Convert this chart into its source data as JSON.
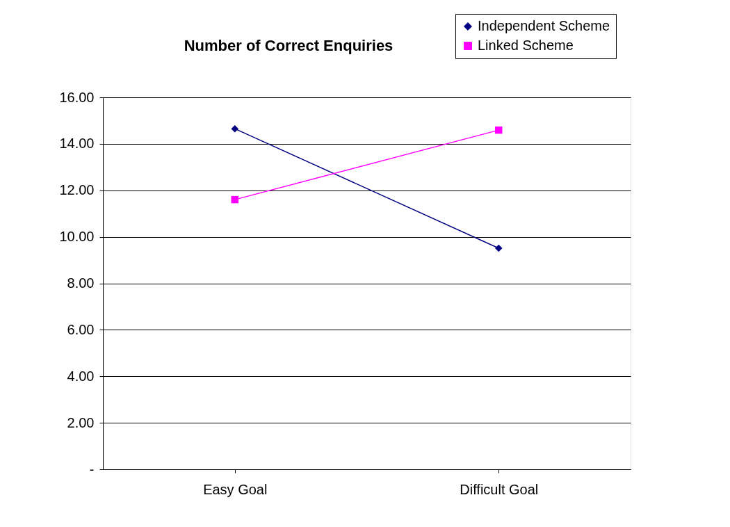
{
  "chart_data": {
    "type": "line",
    "title": "Number of Correct Enquiries",
    "categories": [
      "Easy Goal",
      "Difficult Goal"
    ],
    "series": [
      {
        "name": "Independent Scheme",
        "color": "#000080",
        "marker": "diamond",
        "values": [
          14.65,
          9.51
        ]
      },
      {
        "name": "Linked Scheme",
        "color": "#ff00ff",
        "marker": "square",
        "values": [
          11.6,
          14.59
        ]
      }
    ],
    "ylim": [
      0,
      16
    ],
    "yticks": [
      {
        "value": 0,
        "label": "-"
      },
      {
        "value": 2,
        "label": "2.00"
      },
      {
        "value": 4,
        "label": "4.00"
      },
      {
        "value": 6,
        "label": "6.00"
      },
      {
        "value": 8,
        "label": "8.00"
      },
      {
        "value": 10,
        "label": "10.00"
      },
      {
        "value": 12,
        "label": "12.00"
      },
      {
        "value": 14,
        "label": "14.00"
      },
      {
        "value": 16,
        "label": "16.00"
      }
    ],
    "grid": "y",
    "legend": "top right",
    "line_style": "solid"
  }
}
